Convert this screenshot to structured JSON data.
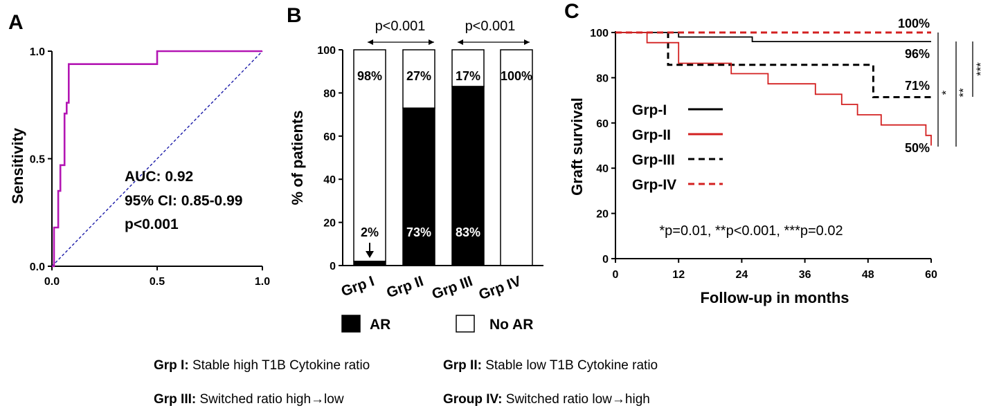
{
  "chart_data": [
    {
      "type": "line",
      "panel": "A",
      "xlabel": "",
      "ylabel": "Sensitivity",
      "xlim": [
        0,
        1
      ],
      "ylim": [
        0,
        1
      ],
      "x_ticks": [
        "0.0",
        "0.5",
        "1.0"
      ],
      "y_ticks": [
        "0.0",
        "0.5",
        "1.0"
      ],
      "color": "#b316b3",
      "reference_color": "#1a1aa8",
      "series": [
        {
          "x": [
            0,
            0.01,
            0.01,
            0.03,
            0.03,
            0.04,
            0.04,
            0.06,
            0.06,
            0.07,
            0.07,
            0.08,
            0.08,
            0.1,
            0.1,
            0.5,
            0.5,
            1.0
          ],
          "y": [
            0,
            0,
            0.18,
            0.18,
            0.35,
            0.35,
            0.47,
            0.47,
            0.71,
            0.71,
            0.76,
            0.76,
            0.94,
            0.94,
            0.94,
            0.94,
            1.0,
            1.0
          ]
        }
      ],
      "reference": {
        "x": [
          0,
          1
        ],
        "y": [
          0,
          1
        ]
      },
      "annotations": [
        "AUC: 0.92",
        "95% CI: 0.85-0.99",
        "p<0.001"
      ]
    },
    {
      "type": "bar",
      "panel": "B",
      "ylabel": "% of patients",
      "ylim": [
        0,
        100
      ],
      "y_ticks": [
        "0",
        "20",
        "40",
        "60",
        "80",
        "100"
      ],
      "categories": [
        "Grp I",
        "Grp II",
        "Grp III",
        "Grp IV"
      ],
      "series": [
        {
          "name": "AR",
          "values": [
            2,
            73,
            83,
            0
          ],
          "color": "#000000"
        },
        {
          "name": "No AR",
          "values": [
            98,
            27,
            17,
            100
          ],
          "color": "#ffffff"
        }
      ],
      "no_ar_labels": [
        "98%",
        "27%",
        "17%",
        "100%"
      ],
      "ar_labels": [
        "2%",
        "73%",
        "83%",
        ""
      ],
      "comparisons": [
        "p<0.001",
        "p<0.001"
      ]
    },
    {
      "type": "line",
      "panel": "C",
      "xlabel": "Follow-up in months",
      "ylabel": "Graft survival",
      "xlim": [
        0,
        60
      ],
      "ylim": [
        0,
        100
      ],
      "x_ticks": [
        "0",
        "12",
        "24",
        "36",
        "48",
        "60"
      ],
      "y_ticks": [
        "0",
        "20",
        "40",
        "60",
        "80",
        "100"
      ],
      "series": [
        {
          "name": "Grp-I",
          "color": "#000000",
          "dash": "solid",
          "x": [
            0,
            12,
            12,
            26,
            26,
            60
          ],
          "y": [
            100,
            100,
            98,
            98,
            96,
            96
          ]
        },
        {
          "name": "Grp-II",
          "color": "#d32020",
          "dash": "solid",
          "x": [
            0,
            6,
            6,
            12,
            12,
            22,
            22,
            29,
            29,
            38,
            38,
            43,
            43,
            46,
            46,
            50.5,
            50.5,
            59,
            59,
            60,
            60
          ],
          "y": [
            100,
            100,
            95.5,
            95.5,
            86.4,
            86.4,
            81.8,
            81.8,
            77.3,
            77.3,
            72.7,
            72.7,
            68.2,
            68.2,
            63.6,
            63.6,
            59.1,
            59.1,
            54.5,
            54.5,
            50
          ]
        },
        {
          "name": "Grp-III",
          "color": "#000000",
          "dash": "dashed",
          "x": [
            0,
            10,
            10,
            49,
            49,
            60
          ],
          "y": [
            100,
            100,
            85.7,
            85.7,
            71.4,
            71.4
          ]
        },
        {
          "name": "Grp-IV",
          "color": "#d32020",
          "dash": "dashed",
          "x": [
            0,
            60
          ],
          "y": [
            100,
            100
          ]
        }
      ],
      "end_labels": [
        "100%",
        "96%",
        "71%",
        "50%"
      ],
      "significance_marks": [
        "*",
        "**",
        "***"
      ],
      "pvalue_note": "*p=0.01, **p<0.001, ***p=0.02"
    }
  ],
  "legend_b": {
    "ar": "AR",
    "no_ar": "No AR"
  },
  "footnotes": [
    [
      {
        "bold": "Grp I:",
        "text": " Stable high T1B Cytokine ratio"
      },
      {
        "bold": "Grp II:",
        "text": " Stable low T1B Cytokine ratio"
      }
    ],
    [
      {
        "bold": "Grp III:",
        "text": " Switched ratio high→low"
      },
      {
        "bold": "Group IV:",
        "text": " Switched ratio low→high"
      }
    ]
  ]
}
